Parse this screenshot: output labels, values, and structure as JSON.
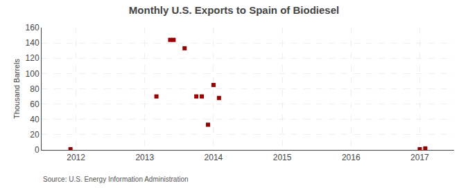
{
  "chart_data": {
    "type": "scatter",
    "title": "Monthly U.S. Exports to Spain of Biodiesel",
    "ylabel": "Thousand Barrels",
    "annotations": [
      "Source: U.S. Energy Information Administration"
    ],
    "x": [
      2011.92,
      2013.17,
      2013.37,
      2013.42,
      2013.58,
      2013.75,
      2013.83,
      2013.92,
      2014.0,
      2014.08,
      2017.0,
      2017.08
    ],
    "values": [
      1,
      70,
      144,
      144,
      133,
      70,
      70,
      33,
      85,
      68,
      1,
      2
    ],
    "color": "#990000",
    "marker": "square",
    "xlim": [
      2011.5,
      2017.5
    ],
    "xticks": [
      2012,
      2013,
      2014,
      2015,
      2016,
      2017
    ],
    "ylim": [
      0,
      160
    ],
    "yticks": [
      0,
      20,
      40,
      60,
      80,
      100,
      120,
      140,
      160
    ],
    "grid": true
  }
}
